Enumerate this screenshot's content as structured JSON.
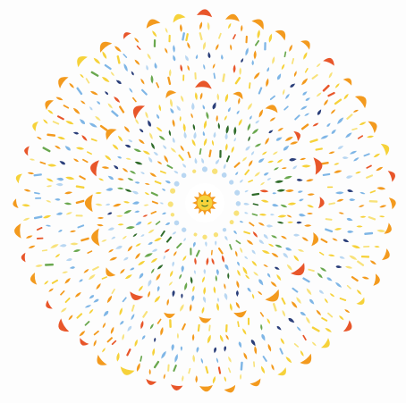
{
  "artwork": {
    "kind": "concentric circular pattern of small stylized motifs",
    "center_emblem": "sun-icon",
    "palette": {
      "orange": "#f39a1e",
      "red_orange": "#e8562a",
      "yellow": "#f6d23a",
      "pale_yellow": "#f8e27a",
      "sky_blue": "#7fb6e6",
      "pale_blue": "#b9d7f2",
      "green": "#6aa84f",
      "dark_green": "#2f6b2a",
      "navy": "#2b3f7a",
      "background": "#fdfdfd"
    },
    "rings": [
      {
        "name": "core",
        "motif": "sun-icon"
      },
      {
        "name": "inner-halo",
        "motif": "dots"
      },
      {
        "name": "inner-leaves",
        "motif": "leaf-icon"
      },
      {
        "name": "inner-scallop",
        "motif": "petal-icon"
      },
      {
        "name": "middle-blue",
        "motif": "drop-icon"
      },
      {
        "name": "middle-mixed",
        "motif": "leaf-icon"
      },
      {
        "name": "outer-blue",
        "motif": "drop-icon"
      },
      {
        "name": "outer-mixed",
        "motif": "leaf-icon"
      },
      {
        "name": "outer-scallop",
        "motif": "petal-icon"
      }
    ]
  }
}
